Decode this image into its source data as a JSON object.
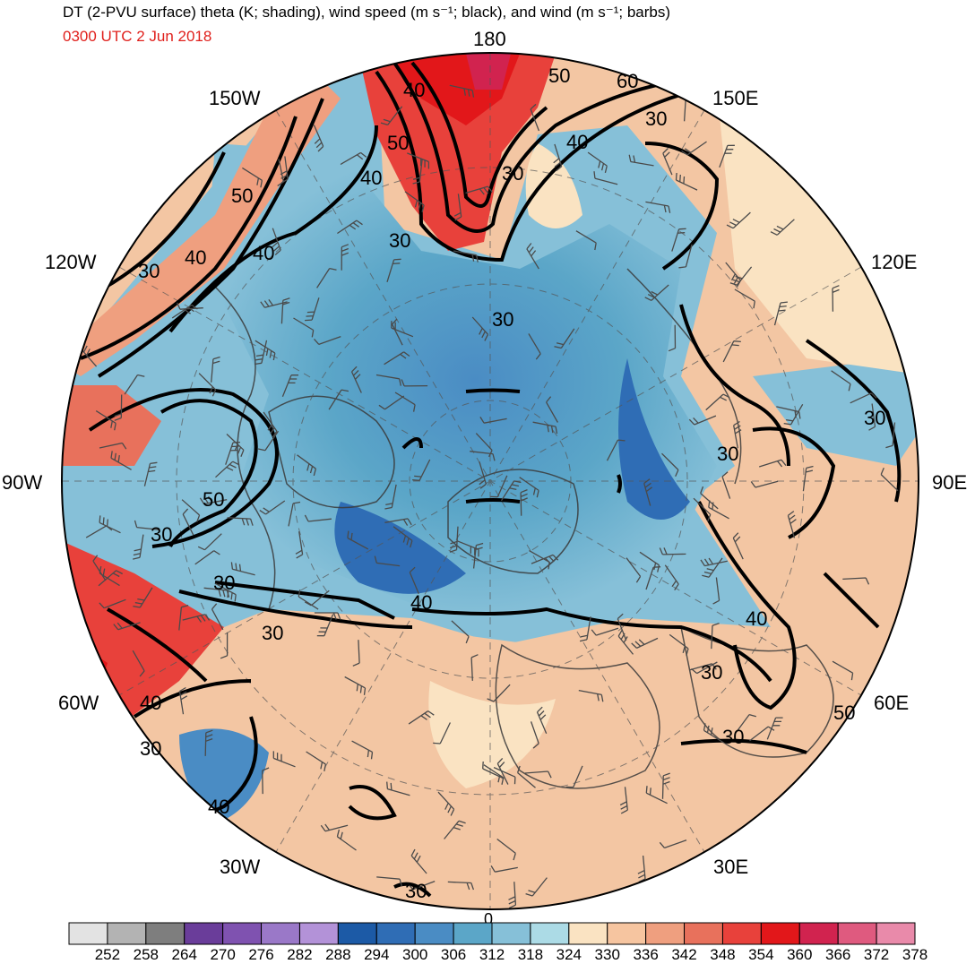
{
  "header": {
    "title": "DT (2-PVU surface) theta (K; shading), wind speed (m s⁻¹; black), and wind (m s⁻¹; barbs)",
    "valid_time": "0300 UTC 2 Jun 2018"
  },
  "longitude_labels": {
    "lon_180": "180",
    "lon_150w": "150W",
    "lon_150e": "150E",
    "lon_120w": "120W",
    "lon_120e": "120E",
    "lon_90w": "90W",
    "lon_90e": "90E",
    "lon_60w": "60W",
    "lon_60e": "60E",
    "lon_30w": "30W",
    "lon_30e": "30E",
    "lon_0": "0"
  },
  "contour_labels": [
    "50",
    "60",
    "40",
    "50",
    "40",
    "30",
    "30",
    "40",
    "50",
    "30",
    "40",
    "30",
    "30",
    "30",
    "40",
    "50",
    "30",
    "30",
    "40",
    "30",
    "30",
    "40",
    "30",
    "30",
    "30",
    "40",
    "40",
    "30",
    "50",
    "30",
    "40"
  ],
  "colorbar": {
    "unit": "K",
    "tick_labels": [
      "252",
      "258",
      "264",
      "270",
      "276",
      "282",
      "288",
      "294",
      "300",
      "306",
      "312",
      "318",
      "324",
      "330",
      "336",
      "342",
      "348",
      "354",
      "360",
      "366",
      "372",
      "378"
    ],
    "colors": [
      "#e3e3e3",
      "#b3b3b3",
      "#7e7e7e",
      "#6a3d9a",
      "#7f52b0",
      "#9a78c8",
      "#b392d8",
      "#1c5aa6",
      "#2f6db5",
      "#4a8cc4",
      "#5ba6c8",
      "#86c0d8",
      "#acdbe6",
      "#fae3c2",
      "#f6c5a0",
      "#ef9f7f",
      "#e8715c",
      "#e8413b",
      "#e2171a",
      "#d1234f",
      "#df5a7f",
      "#e98aaa"
    ]
  }
}
